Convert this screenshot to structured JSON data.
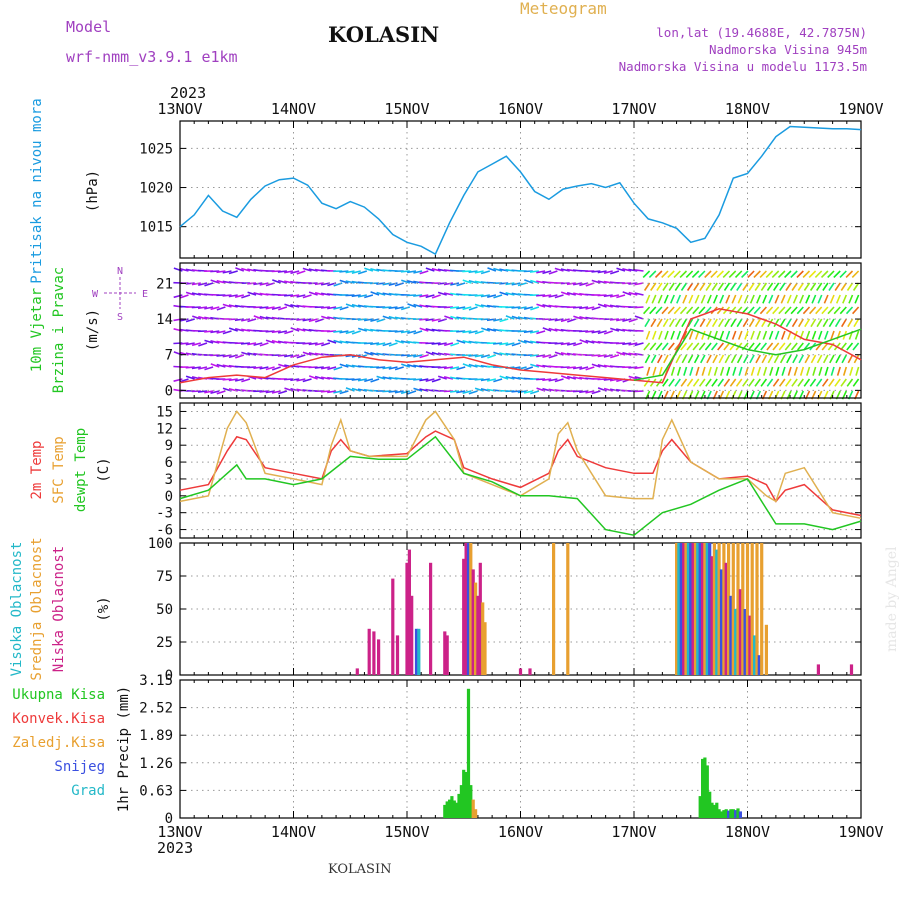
{
  "header": {
    "model_label": "Model",
    "model_name": "wrf-nmm_v3.9.1  e1km",
    "station": "KOLASIN",
    "chart_kind": "Meteogram",
    "coords": "lon,lat (19.4688E, 42.7875N)",
    "elevation": "Nadmorska Visina 945m",
    "model_elevation": "Nadmorska Visina u modelu 1173.5m",
    "year": "2023",
    "footer_station": "KOLASIN",
    "credit": "made by Angel"
  },
  "colors": {
    "purple": "#a040c0",
    "gold": "#e0b050",
    "pressure": "#1a9be0",
    "green": "#22c622",
    "red": "#ee3a3a",
    "orange": "#e8a030",
    "blue": "#3b50e0",
    "cyan": "#23b8c8",
    "magenta": "#cc2288",
    "grid": "#999999"
  },
  "chart_data": [
    {
      "type": "line",
      "panel": "pressure",
      "ylabel_main": "Pritisak na nivou mora",
      "ylabel_unit": "(hPa)",
      "x_ticks": [
        "13NOV",
        "14NOV",
        "15NOV",
        "16NOV",
        "17NOV",
        "18NOV",
        "19NOV"
      ],
      "x_range_hours": [
        0,
        144
      ],
      "ylim": [
        1011,
        1028.5
      ],
      "yticks": [
        1015,
        1020,
        1025
      ],
      "series": [
        {
          "color": "pressure",
          "x": [
            0,
            3,
            6,
            9,
            12,
            15,
            18,
            21,
            24,
            27,
            30,
            33,
            36,
            39,
            42,
            45,
            48,
            51,
            54,
            57,
            60,
            63,
            66,
            69,
            72,
            75,
            78,
            81,
            84,
            87,
            90,
            93,
            96,
            99,
            102,
            105,
            108,
            111,
            114,
            117,
            120,
            123,
            126,
            129,
            132,
            135,
            138,
            141,
            144
          ],
          "y": [
            1015,
            1016.5,
            1019,
            1017,
            1016.2,
            1018.5,
            1020.2,
            1021,
            1021.2,
            1020.3,
            1018,
            1017.3,
            1018.2,
            1017.5,
            1016,
            1014,
            1013,
            1012.5,
            1011.5,
            1015.5,
            1019,
            1022,
            1023,
            1024,
            1022,
            1019.5,
            1018.5,
            1019.8,
            1020.2,
            1020.5,
            1020,
            1020.6,
            1018,
            1016,
            1015.5,
            1014.8,
            1013,
            1013.5,
            1016.5,
            1021.2,
            1021.8,
            1024,
            1026.5,
            1027.8,
            1027.7,
            1027.6,
            1027.5,
            1027.5,
            1027.4
          ]
        }
      ]
    },
    {
      "type": "line",
      "panel": "wind",
      "ylabel_main": "10m Vjetar",
      "ylabel_main2": "Brzina i Pravac",
      "ylabel_unit": "(m/s)",
      "compass": {
        "n": "N",
        "s": "S",
        "e": "E",
        "w": "W"
      },
      "ylim": [
        -1.5,
        25
      ],
      "yticks": [
        0,
        7,
        14,
        21
      ],
      "series": [
        {
          "color": "red",
          "x": [
            0,
            6,
            12,
            18,
            24,
            30,
            36,
            42,
            48,
            54,
            60,
            66,
            72,
            78,
            84,
            90,
            96,
            102,
            108,
            114,
            120,
            126,
            132,
            138,
            144
          ],
          "y": [
            1.5,
            2.5,
            3,
            2.5,
            5,
            6.5,
            7,
            6,
            5.5,
            6,
            6.5,
            5,
            4,
            3.5,
            3,
            2.5,
            2,
            1.5,
            14,
            16,
            15,
            13,
            10,
            9,
            6
          ]
        },
        {
          "color": "green",
          "x": [
            96,
            102,
            108,
            114,
            120,
            126,
            132,
            138,
            144
          ],
          "y": [
            2,
            3,
            12,
            10,
            8,
            7,
            8,
            10,
            12
          ]
        }
      ]
    },
    {
      "type": "line",
      "panel": "temperature",
      "ylabel_t2": "2m Temp",
      "ylabel_sfc": "SFC Temp",
      "ylabel_dew": "dewpt Temp",
      "ylabel_unit": "(C)",
      "ylim": [
        -7.5,
        16.5
      ],
      "yticks": [
        -6,
        -3,
        0,
        3,
        6,
        9,
        12,
        15
      ],
      "series": [
        {
          "color": "red",
          "x": [
            0,
            6,
            10,
            12,
            14,
            18,
            24,
            30,
            32,
            34,
            36,
            40,
            48,
            52,
            54,
            58,
            60,
            66,
            72,
            78,
            80,
            82,
            84,
            90,
            96,
            100,
            102,
            104,
            108,
            114,
            120,
            124,
            126,
            128,
            132,
            138,
            144
          ],
          "y": [
            1,
            2,
            8,
            10.5,
            10,
            5,
            4,
            3,
            8,
            10,
            8,
            7,
            7.5,
            10.5,
            11.5,
            10,
            5,
            3,
            1.5,
            4,
            8,
            10,
            7,
            5,
            4,
            4,
            8,
            10,
            6,
            3,
            3.5,
            2,
            -1,
            1,
            2,
            -2.5,
            -3.5
          ]
        },
        {
          "color": "gold",
          "x": [
            0,
            6,
            10,
            12,
            14,
            18,
            24,
            30,
            32,
            34,
            36,
            40,
            48,
            52,
            54,
            58,
            60,
            66,
            72,
            78,
            80,
            82,
            84,
            90,
            96,
            100,
            102,
            104,
            108,
            114,
            120,
            124,
            126,
            128,
            132,
            138,
            144
          ],
          "y": [
            -1,
            0,
            12,
            15,
            13,
            4,
            3,
            2,
            9,
            13.5,
            8,
            7,
            7,
            13.5,
            15,
            10,
            4,
            2,
            0,
            3,
            11,
            13,
            8,
            0,
            -0.5,
            -0.5,
            10,
            13.5,
            6,
            3,
            3,
            0,
            -1,
            4,
            5,
            -3,
            -4
          ]
        },
        {
          "color": "green",
          "x": [
            0,
            6,
            10,
            12,
            14,
            18,
            24,
            30,
            36,
            42,
            48,
            54,
            60,
            66,
            72,
            78,
            84,
            90,
            96,
            102,
            108,
            114,
            120,
            126,
            132,
            138,
            144
          ],
          "y": [
            -0.5,
            1,
            4,
            5.5,
            3,
            3,
            2,
            3,
            7,
            6.5,
            6.5,
            10.5,
            4,
            2.5,
            0,
            0,
            -0.5,
            -6,
            -7,
            -3,
            -1.5,
            1,
            3,
            -5,
            -5,
            -6,
            -4.5
          ]
        }
      ]
    },
    {
      "type": "bar",
      "panel": "clouds",
      "ylabel_high": "Visoka Oblacnost",
      "ylabel_mid": "Srednja Oblacnost",
      "ylabel_low": "Niska Oblacnost",
      "ylabel_unit": "(%)",
      "ylim": [
        0,
        100
      ],
      "yticks": [
        0,
        25,
        50,
        75,
        100
      ],
      "bars": [
        {
          "h": 37.5,
          "v": 5,
          "color": "magenta"
        },
        {
          "h": 40,
          "v": 35,
          "color": "magenta"
        },
        {
          "h": 41,
          "v": 33,
          "color": "magenta"
        },
        {
          "h": 42,
          "v": 27,
          "color": "magenta"
        },
        {
          "h": 45,
          "v": 73,
          "color": "magenta"
        },
        {
          "h": 46,
          "v": 30,
          "color": "magenta"
        },
        {
          "h": 48,
          "v": 85,
          "color": "magenta"
        },
        {
          "h": 48.5,
          "v": 95,
          "color": "magenta"
        },
        {
          "h": 49,
          "v": 60,
          "color": "magenta"
        },
        {
          "h": 50,
          "v": 35,
          "color": "blue"
        },
        {
          "h": 50.5,
          "v": 35,
          "color": "cyan"
        },
        {
          "h": 53,
          "v": 85,
          "color": "magenta"
        },
        {
          "h": 56,
          "v": 33,
          "color": "magenta"
        },
        {
          "h": 56.5,
          "v": 30,
          "color": "magenta"
        },
        {
          "h": 60,
          "v": 88,
          "color": "magenta"
        },
        {
          "h": 60.5,
          "v": 100,
          "color": "magenta"
        },
        {
          "h": 61,
          "v": 100,
          "color": "blue"
        },
        {
          "h": 61.5,
          "v": 100,
          "color": "orange"
        },
        {
          "h": 62,
          "v": 80,
          "color": "magenta"
        },
        {
          "h": 62.5,
          "v": 70,
          "color": "orange"
        },
        {
          "h": 63,
          "v": 60,
          "color": "magenta"
        },
        {
          "h": 63.5,
          "v": 85,
          "color": "magenta"
        },
        {
          "h": 64,
          "v": 55,
          "color": "orange"
        },
        {
          "h": 64.5,
          "v": 40,
          "color": "orange"
        },
        {
          "h": 72,
          "v": 5,
          "color": "magenta"
        },
        {
          "h": 74,
          "v": 5,
          "color": "magenta"
        },
        {
          "h": 79,
          "v": 100,
          "color": "orange"
        },
        {
          "h": 82,
          "v": 100,
          "color": "orange"
        },
        {
          "h": 105,
          "v": 100,
          "color": "orange"
        },
        {
          "h": 105.5,
          "v": 100,
          "color": "cyan"
        },
        {
          "h": 106,
          "v": 100,
          "color": "blue"
        },
        {
          "h": 106.5,
          "v": 100,
          "color": "magenta"
        },
        {
          "h": 107,
          "v": 100,
          "color": "orange"
        },
        {
          "h": 107.5,
          "v": 100,
          "color": "cyan"
        },
        {
          "h": 108,
          "v": 100,
          "color": "blue"
        },
        {
          "h": 108.5,
          "v": 100,
          "color": "magenta"
        },
        {
          "h": 109,
          "v": 100,
          "color": "orange"
        },
        {
          "h": 109.5,
          "v": 100,
          "color": "cyan"
        },
        {
          "h": 110,
          "v": 100,
          "color": "blue"
        },
        {
          "h": 110.5,
          "v": 100,
          "color": "magenta"
        },
        {
          "h": 111,
          "v": 100,
          "color": "orange"
        },
        {
          "h": 111.5,
          "v": 100,
          "color": "cyan"
        },
        {
          "h": 112,
          "v": 100,
          "color": "blue"
        },
        {
          "h": 112.5,
          "v": 90,
          "color": "magenta"
        },
        {
          "h": 113,
          "v": 100,
          "color": "orange"
        },
        {
          "h": 113.5,
          "v": 95,
          "color": "cyan"
        },
        {
          "h": 114,
          "v": 100,
          "color": "orange"
        },
        {
          "h": 114.5,
          "v": 80,
          "color": "blue"
        },
        {
          "h": 115,
          "v": 100,
          "color": "orange"
        },
        {
          "h": 115.5,
          "v": 85,
          "color": "magenta"
        },
        {
          "h": 116,
          "v": 100,
          "color": "orange"
        },
        {
          "h": 116.5,
          "v": 60,
          "color": "blue"
        },
        {
          "h": 117,
          "v": 100,
          "color": "orange"
        },
        {
          "h": 117.5,
          "v": 50,
          "color": "cyan"
        },
        {
          "h": 118,
          "v": 100,
          "color": "orange"
        },
        {
          "h": 118.5,
          "v": 65,
          "color": "magenta"
        },
        {
          "h": 119,
          "v": 100,
          "color": "orange"
        },
        {
          "h": 119.5,
          "v": 50,
          "color": "blue"
        },
        {
          "h": 120,
          "v": 100,
          "color": "orange"
        },
        {
          "h": 120.5,
          "v": 45,
          "color": "magenta"
        },
        {
          "h": 121,
          "v": 100,
          "color": "orange"
        },
        {
          "h": 121.5,
          "v": 30,
          "color": "cyan"
        },
        {
          "h": 122,
          "v": 100,
          "color": "orange"
        },
        {
          "h": 122.5,
          "v": 15,
          "color": "blue"
        },
        {
          "h": 123,
          "v": 100,
          "color": "orange"
        },
        {
          "h": 124,
          "v": 38,
          "color": "orange"
        },
        {
          "h": 135,
          "v": 8,
          "color": "magenta"
        },
        {
          "h": 142,
          "v": 8,
          "color": "magenta"
        }
      ]
    },
    {
      "type": "bar",
      "panel": "precipitation",
      "legend": [
        "Ukupna Kisa",
        "Konvek.Kisa",
        "Zaledj.Kisa",
        "Snijeg",
        "Grad"
      ],
      "legend_colors": [
        "green",
        "red",
        "orange",
        "blue",
        "cyan"
      ],
      "ylabel_unit": "1hr Precip (mm)",
      "ylim": [
        0,
        3.15
      ],
      "ytick_labels": [
        "3.15",
        "2.52",
        "1.89",
        "1.26",
        "0.63",
        "0"
      ],
      "yticks": [
        3.15,
        2.52,
        1.89,
        1.26,
        0.63,
        0
      ],
      "bars": [
        {
          "h": 56,
          "v": 0.3,
          "color": "green"
        },
        {
          "h": 56.5,
          "v": 0.38,
          "color": "green"
        },
        {
          "h": 57,
          "v": 0.42,
          "color": "green"
        },
        {
          "h": 57.5,
          "v": 0.5,
          "color": "green"
        },
        {
          "h": 58,
          "v": 0.4,
          "color": "green"
        },
        {
          "h": 58.5,
          "v": 0.35,
          "color": "green"
        },
        {
          "h": 59,
          "v": 0.55,
          "color": "green"
        },
        {
          "h": 59.5,
          "v": 0.75,
          "color": "green"
        },
        {
          "h": 60,
          "v": 1.1,
          "color": "green"
        },
        {
          "h": 60.5,
          "v": 1.05,
          "color": "green"
        },
        {
          "h": 61,
          "v": 2.95,
          "color": "green"
        },
        {
          "h": 61.5,
          "v": 0.75,
          "color": "green"
        },
        {
          "h": 62,
          "v": 0.42,
          "color": "orange"
        },
        {
          "h": 62.5,
          "v": 0.2,
          "color": "orange"
        },
        {
          "h": 110,
          "v": 0.5,
          "color": "green"
        },
        {
          "h": 110.5,
          "v": 1.35,
          "color": "green"
        },
        {
          "h": 111,
          "v": 1.38,
          "color": "green"
        },
        {
          "h": 111.5,
          "v": 1.2,
          "color": "green"
        },
        {
          "h": 112,
          "v": 0.6,
          "color": "green"
        },
        {
          "h": 112.5,
          "v": 0.35,
          "color": "green"
        },
        {
          "h": 113,
          "v": 0.3,
          "color": "green"
        },
        {
          "h": 113.5,
          "v": 0.35,
          "color": "green"
        },
        {
          "h": 114,
          "v": 0.2,
          "color": "green"
        },
        {
          "h": 114.5,
          "v": 0.15,
          "color": "green"
        },
        {
          "h": 115,
          "v": 0.18,
          "color": "green"
        },
        {
          "h": 115.5,
          "v": 0.2,
          "color": "green"
        },
        {
          "h": 116,
          "v": 0.17,
          "color": "blue"
        },
        {
          "h": 116.5,
          "v": 0.2,
          "color": "green"
        },
        {
          "h": 117,
          "v": 0.2,
          "color": "green"
        },
        {
          "h": 117.5,
          "v": 0.18,
          "color": "blue"
        },
        {
          "h": 118,
          "v": 0.22,
          "color": "green"
        },
        {
          "h": 118.5,
          "v": 0.15,
          "color": "blue"
        }
      ]
    }
  ]
}
